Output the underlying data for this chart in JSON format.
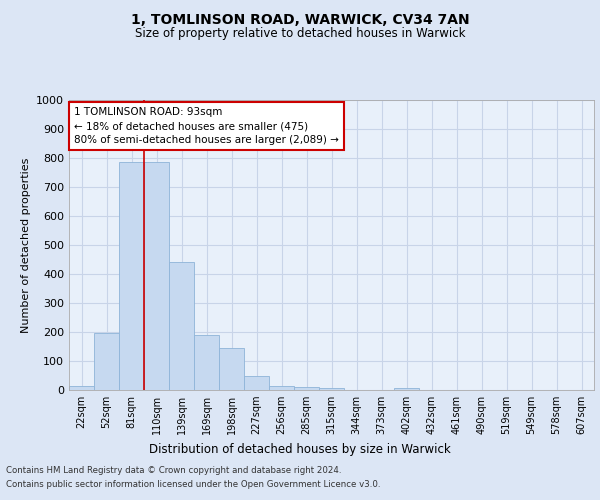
{
  "title": "1, TOMLINSON ROAD, WARWICK, CV34 7AN",
  "subtitle": "Size of property relative to detached houses in Warwick",
  "xlabel": "Distribution of detached houses by size in Warwick",
  "ylabel": "Number of detached properties",
  "categories": [
    "22sqm",
    "52sqm",
    "81sqm",
    "110sqm",
    "139sqm",
    "169sqm",
    "198sqm",
    "227sqm",
    "256sqm",
    "285sqm",
    "315sqm",
    "344sqm",
    "373sqm",
    "402sqm",
    "432sqm",
    "461sqm",
    "490sqm",
    "519sqm",
    "549sqm",
    "578sqm",
    "607sqm"
  ],
  "values": [
    15,
    195,
    785,
    785,
    440,
    190,
    145,
    50,
    15,
    10,
    8,
    0,
    0,
    8,
    0,
    0,
    0,
    0,
    0,
    0,
    0
  ],
  "bar_color": "#c6d9f0",
  "bar_edge_color": "#8eb4d8",
  "grid_color": "#c8d4e8",
  "bg_color": "#dce6f5",
  "plot_bg_color": "#e8f0fa",
  "red_line_x": 2.5,
  "annotation_text": "1 TOMLINSON ROAD: 93sqm\n← 18% of detached houses are smaller (475)\n80% of semi-detached houses are larger (2,089) →",
  "annotation_box_color": "#cc0000",
  "ylim": [
    0,
    1000
  ],
  "yticks": [
    0,
    100,
    200,
    300,
    400,
    500,
    600,
    700,
    800,
    900,
    1000
  ],
  "footer_line1": "Contains HM Land Registry data © Crown copyright and database right 2024.",
  "footer_line2": "Contains public sector information licensed under the Open Government Licence v3.0."
}
